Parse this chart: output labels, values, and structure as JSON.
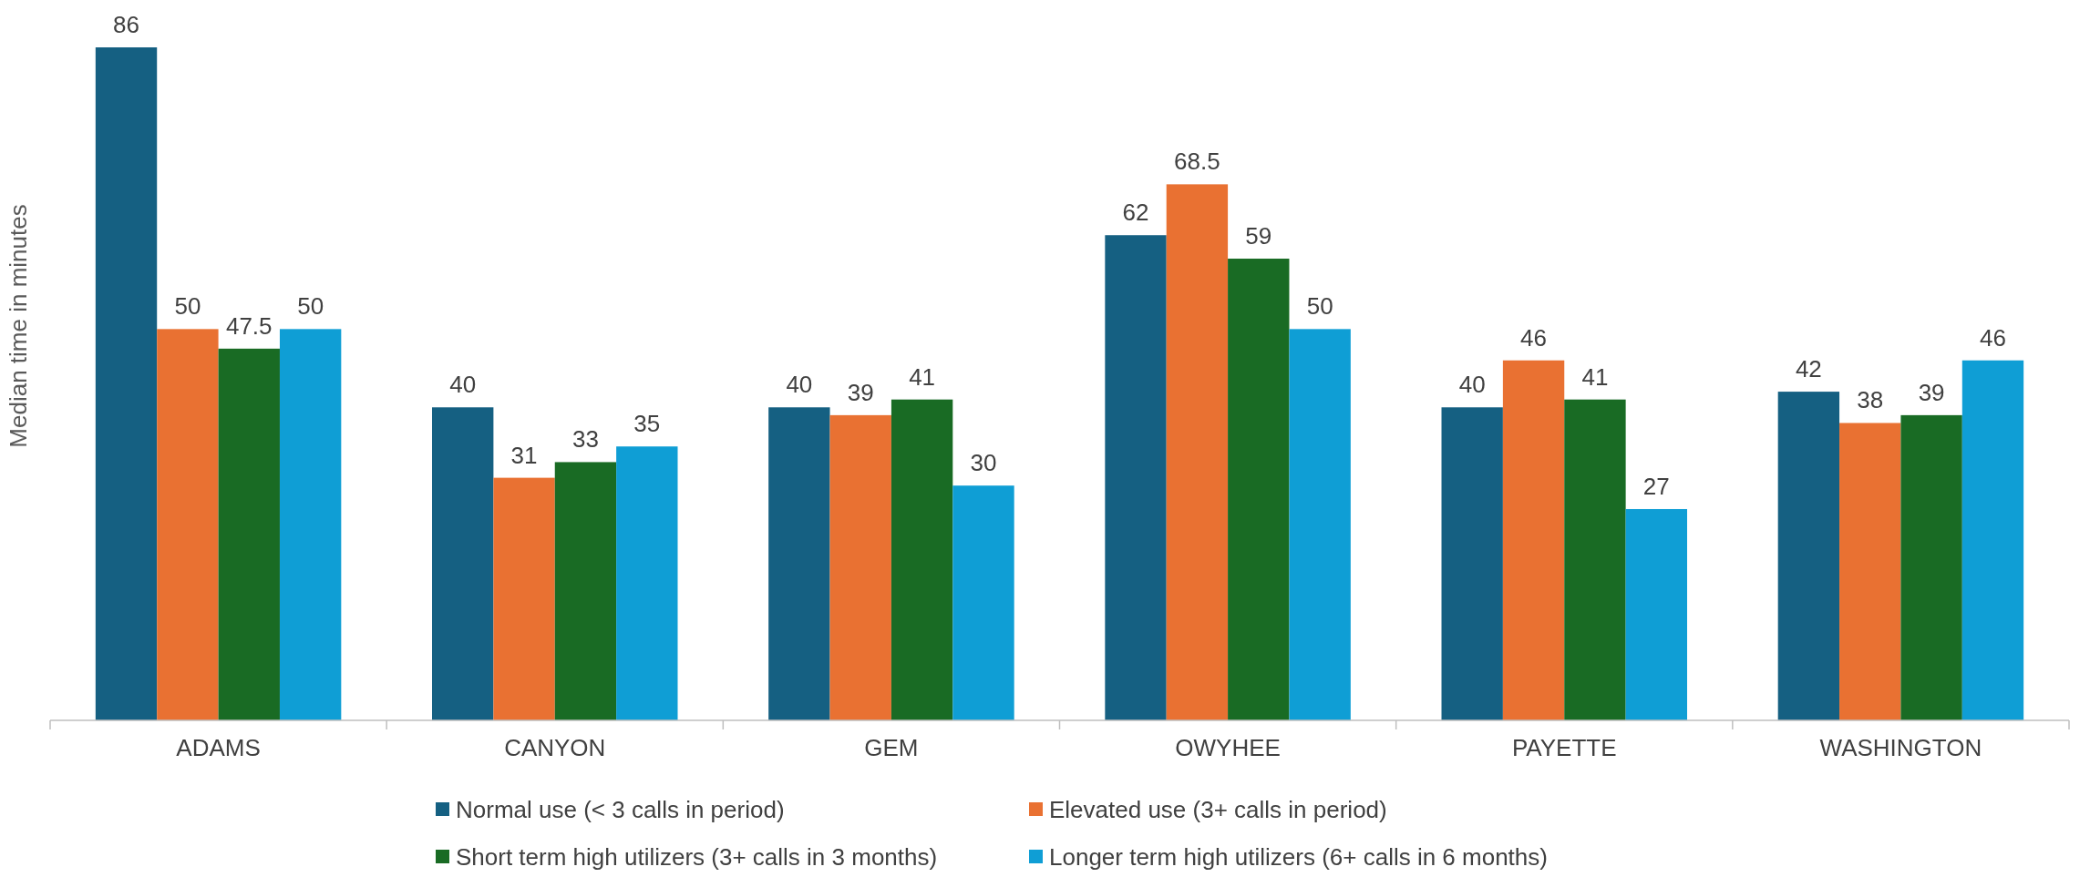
{
  "chart_data": {
    "type": "bar",
    "ylabel": "Median time in minutes",
    "categories": [
      "ADAMS",
      "CANYON",
      "GEM",
      "OWYHEE",
      "PAYETTE",
      "WASHINGTON"
    ],
    "series": [
      {
        "name": "Normal use (< 3 calls in period)",
        "color": "#156082",
        "values": [
          86,
          40,
          40,
          62,
          40,
          42
        ]
      },
      {
        "name": "Elevated use (3+ calls in period)",
        "color": "#e97132",
        "values": [
          50,
          31,
          39,
          68.5,
          46,
          38
        ]
      },
      {
        "name": "Short term high utilizers (3+ calls in 3 months)",
        "color": "#196b24",
        "values": [
          47.5,
          33,
          41,
          59,
          41,
          39
        ]
      },
      {
        "name": "Longer term high utilizers (6+ calls in 6 months)",
        "color": "#0f9ed5",
        "values": [
          50,
          35,
          30,
          50,
          27,
          46
        ]
      }
    ],
    "data_labels": true,
    "legend": "bottom"
  }
}
